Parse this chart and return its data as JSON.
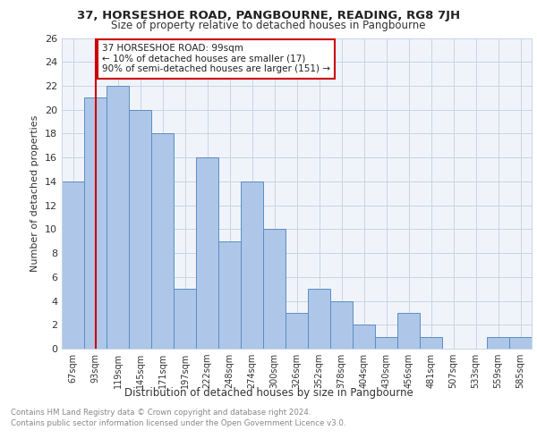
{
  "title1": "37, HORSESHOE ROAD, PANGBOURNE, READING, RG8 7JH",
  "title2": "Size of property relative to detached houses in Pangbourne",
  "xlabel": "Distribution of detached houses by size in Pangbourne",
  "ylabel": "Number of detached properties",
  "categories": [
    "67sqm",
    "93sqm",
    "119sqm",
    "145sqm",
    "171sqm",
    "197sqm",
    "222sqm",
    "248sqm",
    "274sqm",
    "300sqm",
    "326sqm",
    "352sqm",
    "378sqm",
    "404sqm",
    "430sqm",
    "456sqm",
    "481sqm",
    "507sqm",
    "533sqm",
    "559sqm",
    "585sqm"
  ],
  "values": [
    14,
    21,
    22,
    20,
    18,
    5,
    16,
    9,
    14,
    10,
    3,
    5,
    4,
    2,
    1,
    3,
    1,
    0,
    0,
    1,
    1
  ],
  "bar_color": "#aec6e8",
  "bar_edge_color": "#5a8fc2",
  "vline_x": 1,
  "vline_color": "#cc0000",
  "annotation_text": "37 HORSESHOE ROAD: 99sqm\n← 10% of detached houses are smaller (17)\n90% of semi-detached houses are larger (151) →",
  "annotation_box_color": "#ffffff",
  "annotation_box_edge": "#cc0000",
  "ylim": [
    0,
    26
  ],
  "yticks": [
    0,
    2,
    4,
    6,
    8,
    10,
    12,
    14,
    16,
    18,
    20,
    22,
    24,
    26
  ],
  "footnote1": "Contains HM Land Registry data © Crown copyright and database right 2024.",
  "footnote2": "Contains public sector information licensed under the Open Government Licence v3.0.",
  "bg_color": "#f0f4fa",
  "grid_color": "#c8d4e8"
}
